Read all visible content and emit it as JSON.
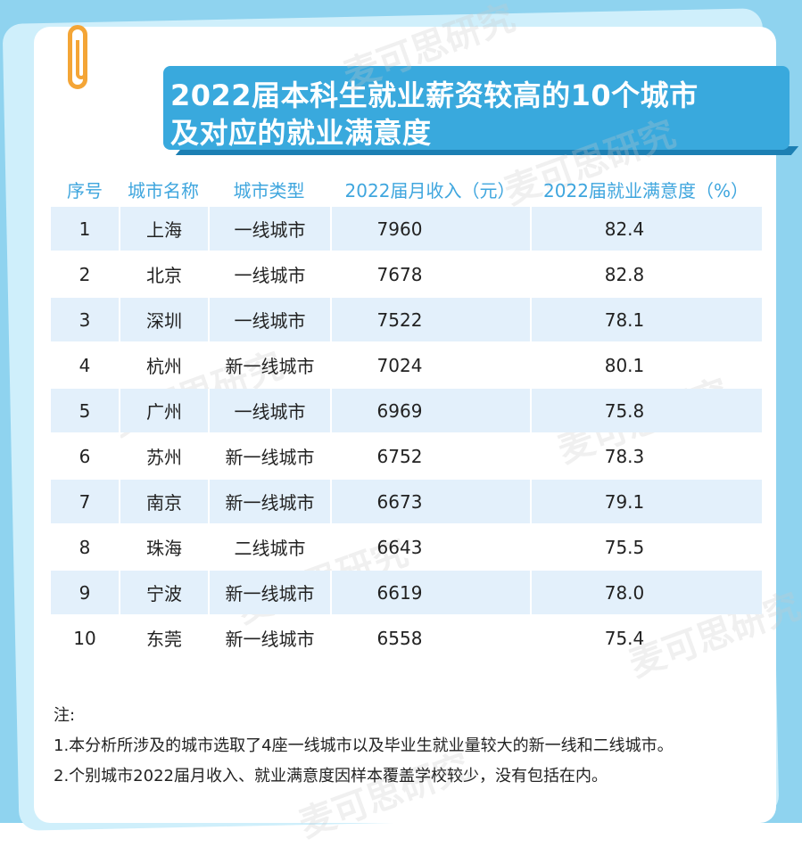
{
  "title": {
    "line1": "2022届本科生就业薪资较高的10个城市",
    "line2": "及对应的就业满意度"
  },
  "watermark": "麦可思研究",
  "table": {
    "headers": [
      "序号",
      "城市名称",
      "城市类型",
      "2022届月收入（元）",
      "2022届就业满意度（%）"
    ],
    "rows": [
      [
        "1",
        "上海",
        "一线城市",
        "7960",
        "82.4"
      ],
      [
        "2",
        "北京",
        "一线城市",
        "7678",
        "82.8"
      ],
      [
        "3",
        "深圳",
        "一线城市",
        "7522",
        "78.1"
      ],
      [
        "4",
        "杭州",
        "新一线城市",
        "7024",
        "80.1"
      ],
      [
        "5",
        "广州",
        "一线城市",
        "6969",
        "75.8"
      ],
      [
        "6",
        "苏州",
        "新一线城市",
        "6752",
        "78.3"
      ],
      [
        "7",
        "南京",
        "新一线城市",
        "6673",
        "79.1"
      ],
      [
        "8",
        "珠海",
        "二线城市",
        "6643",
        "75.5"
      ],
      [
        "9",
        "宁波",
        "新一线城市",
        "6619",
        "78.0"
      ],
      [
        "10",
        "东莞",
        "新一线城市",
        "6558",
        "75.4"
      ]
    ]
  },
  "notes": {
    "heading": "注:",
    "items": [
      "1.本分析所涉及的城市选取了4座一线城市以及毕业生就业量较大的新一线和二线城市。",
      "2.个别城市2022届月收入、就业满意度因样本覆盖学校较少，没有包括在内。"
    ]
  },
  "colors": {
    "accent": "#39a9dd",
    "header_text": "#3fa6de",
    "row_shade": "#e3f0fb",
    "clip": "#f4a536"
  }
}
